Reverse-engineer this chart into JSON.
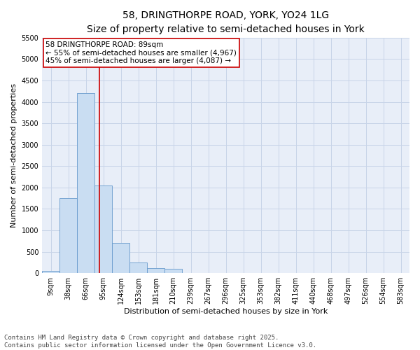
{
  "title_line1": "58, DRINGTHORPE ROAD, YORK, YO24 1LG",
  "title_line2": "Size of property relative to semi-detached houses in York",
  "xlabel": "Distribution of semi-detached houses by size in York",
  "ylabel": "Number of semi-detached properties",
  "bar_labels": [
    "9sqm",
    "38sqm",
    "66sqm",
    "95sqm",
    "124sqm",
    "153sqm",
    "181sqm",
    "210sqm",
    "239sqm",
    "267sqm",
    "296sqm",
    "325sqm",
    "353sqm",
    "382sqm",
    "411sqm",
    "440sqm",
    "468sqm",
    "497sqm",
    "526sqm",
    "554sqm",
    "583sqm"
  ],
  "bar_values": [
    50,
    1750,
    4200,
    2050,
    700,
    250,
    120,
    100,
    10,
    0,
    0,
    0,
    0,
    0,
    0,
    0,
    0,
    0,
    0,
    0,
    0
  ],
  "bar_color": "#c9ddf2",
  "bar_edge_color": "#6699cc",
  "red_line_color": "#cc0000",
  "red_line_x": 2.793,
  "annotation_text": "58 DRINGTHORPE ROAD: 89sqm\n← 55% of semi-detached houses are smaller (4,967)\n45% of semi-detached houses are larger (4,087) →",
  "annotation_box_color": "#ffffff",
  "annotation_box_edge": "#cc0000",
  "ylim": [
    0,
    5500
  ],
  "yticks": [
    0,
    500,
    1000,
    1500,
    2000,
    2500,
    3000,
    3500,
    4000,
    4500,
    5000,
    5500
  ],
  "grid_color": "#c8d4e8",
  "background_color": "#e8eef8",
  "footer_text": "Contains HM Land Registry data © Crown copyright and database right 2025.\nContains public sector information licensed under the Open Government Licence v3.0.",
  "title_fontsize": 10,
  "subtitle_fontsize": 9,
  "axis_label_fontsize": 8,
  "tick_fontsize": 7,
  "annotation_fontsize": 7.5,
  "footer_fontsize": 6.5
}
